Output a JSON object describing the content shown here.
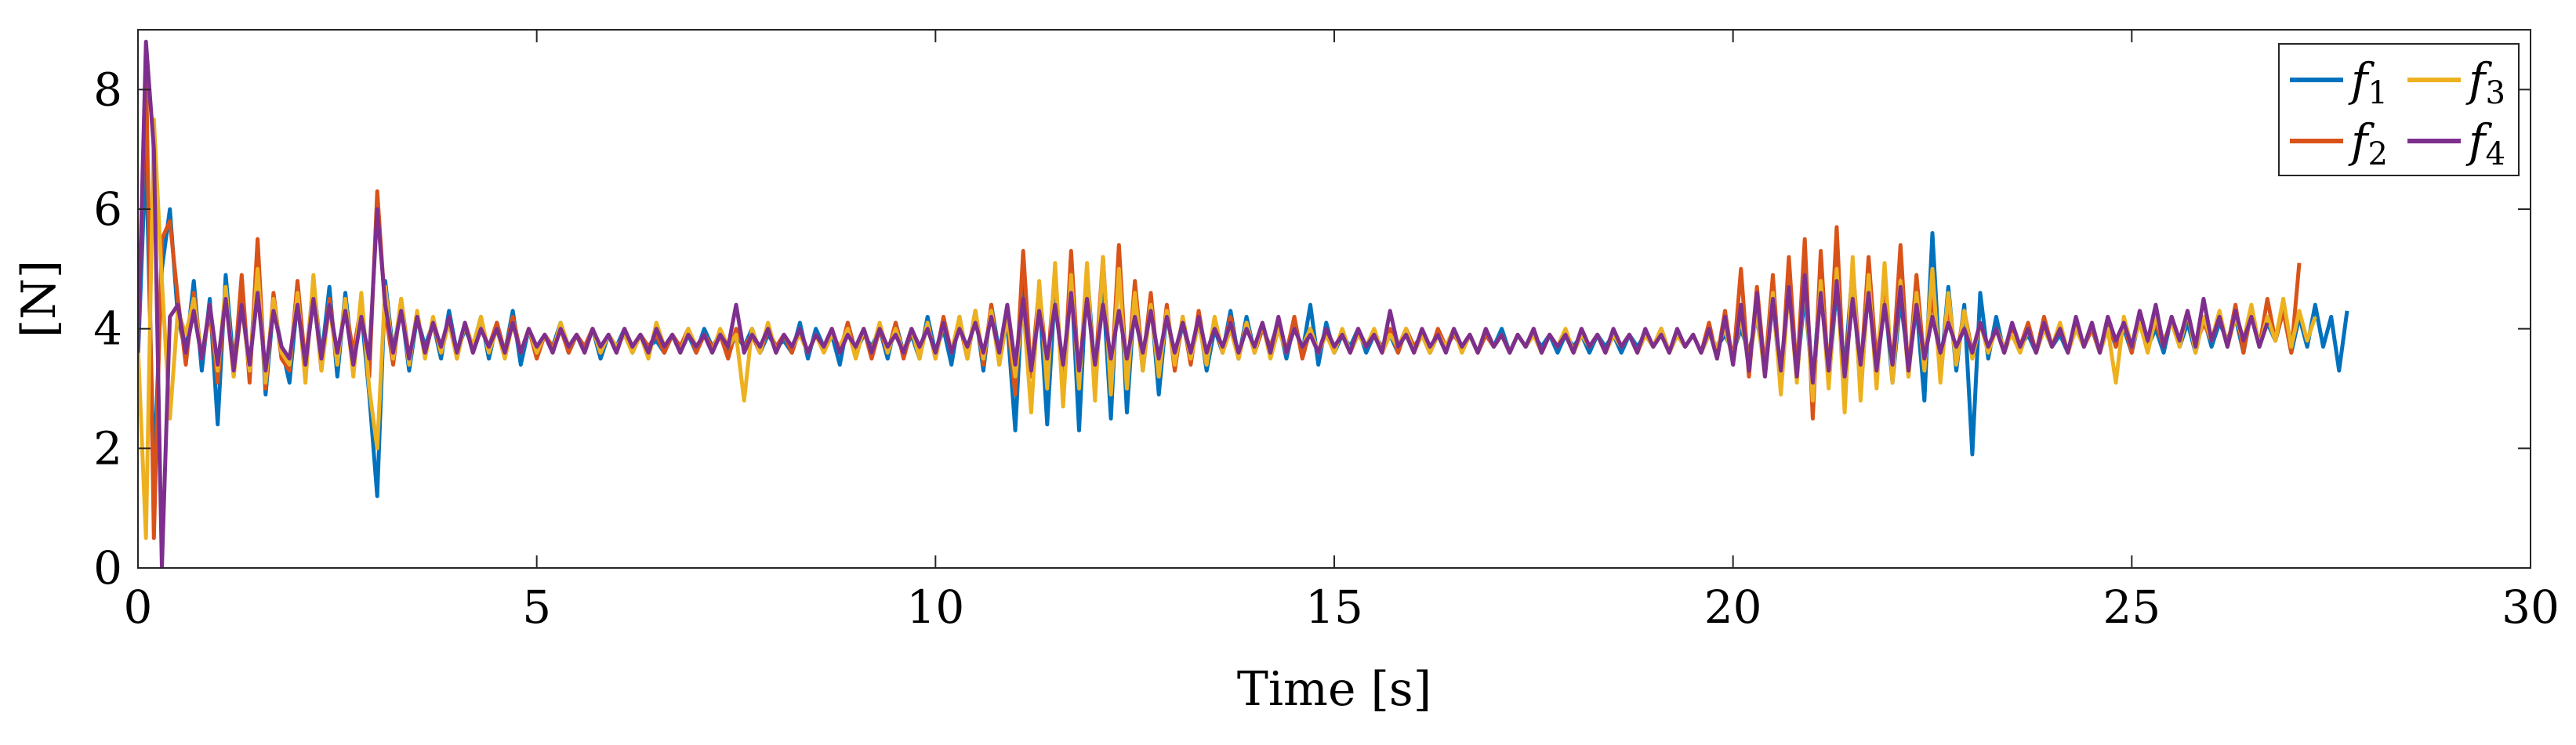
{
  "chart_data": {
    "type": "line",
    "title": "",
    "xlabel": "Time [s]",
    "ylabel": "[N]",
    "xlim": [
      0,
      30
    ],
    "ylim": [
      0,
      9
    ],
    "xticks": [
      0,
      5,
      10,
      15,
      20,
      25,
      30
    ],
    "yticks": [
      0,
      2,
      4,
      6,
      8
    ],
    "x_tick_labels": [
      "0",
      "5",
      "10",
      "15",
      "20",
      "25",
      "30"
    ],
    "y_tick_labels": [
      "0",
      "2",
      "4",
      "6",
      "8"
    ],
    "grid": false,
    "legend_position": "top-right",
    "sample_step_s": 0.1,
    "series": [
      {
        "name": "f1",
        "label_base": "f",
        "label_sub": "1",
        "color": "#0072BD",
        "values": [
          3.5,
          7.0,
          1.5,
          5.0,
          6.0,
          4.2,
          3.6,
          4.8,
          3.3,
          4.5,
          2.4,
          4.9,
          3.4,
          4.6,
          3.2,
          5.3,
          2.9,
          4.4,
          3.7,
          3.1,
          4.5,
          3.3,
          4.8,
          3.5,
          4.7,
          3.2,
          4.6,
          3.4,
          4.3,
          2.9,
          1.2,
          4.8,
          3.6,
          4.4,
          3.3,
          4.2,
          3.7,
          4.1,
          3.5,
          4.3,
          3.6,
          4.0,
          3.7,
          4.2,
          3.5,
          4.1,
          3.6,
          4.3,
          3.4,
          4.0,
          3.6,
          3.9,
          3.7,
          4.1,
          3.6,
          3.9,
          3.7,
          4.0,
          3.5,
          3.9,
          3.7,
          4.0,
          3.6,
          3.9,
          3.7,
          3.8,
          3.6,
          3.9,
          3.7,
          3.9,
          3.6,
          4.0,
          3.7,
          3.9,
          3.6,
          3.9,
          3.7,
          4.0,
          3.6,
          3.9,
          3.7,
          3.8,
          3.6,
          4.1,
          3.5,
          4.0,
          3.7,
          3.9,
          3.4,
          4.1,
          3.6,
          3.9,
          3.7,
          4.0,
          3.5,
          4.1,
          3.6,
          3.9,
          3.5,
          4.2,
          3.6,
          4.0,
          3.4,
          4.2,
          3.5,
          4.3,
          3.3,
          4.4,
          3.6,
          4.1,
          2.3,
          4.8,
          3.2,
          4.6,
          2.4,
          4.7,
          3.1,
          4.9,
          2.3,
          5.0,
          3.2,
          4.7,
          2.5,
          5.2,
          2.6,
          4.6,
          3.3,
          4.5,
          2.9,
          4.3,
          3.4,
          4.1,
          3.5,
          4.2,
          3.3,
          4.0,
          3.6,
          4.3,
          3.5,
          4.2,
          3.6,
          4.0,
          3.7,
          4.1,
          3.5,
          4.1,
          3.6,
          4.4,
          3.4,
          4.1,
          3.6,
          3.9,
          3.7,
          4.0,
          3.6,
          3.9,
          3.7,
          3.9,
          3.6,
          4.0,
          3.7,
          3.9,
          3.6,
          3.9,
          3.7,
          3.9,
          3.7,
          3.9,
          3.6,
          3.9,
          3.7,
          4.0,
          3.6,
          3.9,
          3.7,
          3.9,
          3.7,
          3.9,
          3.6,
          3.9,
          3.7,
          3.9,
          3.6,
          3.9,
          3.7,
          3.9,
          3.6,
          3.9,
          3.7,
          3.9,
          3.7,
          4.0,
          3.6,
          3.9,
          3.7,
          3.9,
          3.6,
          3.9,
          3.7,
          3.9,
          3.6,
          4.0,
          3.6,
          4.2,
          3.3,
          4.5,
          3.0,
          4.8,
          3.2,
          4.6,
          3.0,
          4.9,
          3.1,
          4.7,
          3.3,
          5.0,
          2.9,
          4.8,
          3.2,
          4.6,
          3.1,
          4.5,
          3.4,
          4.4,
          2.8,
          5.6,
          3.2,
          4.7,
          3.3,
          4.4,
          1.9,
          4.6,
          3.5,
          4.2,
          3.6,
          4.0,
          3.7,
          3.9,
          3.6,
          4.0,
          3.7,
          3.9,
          3.6,
          4.1,
          3.7,
          4.0,
          3.6,
          4.1,
          3.7,
          4.0,
          3.6,
          4.2,
          3.7,
          4.0,
          3.6,
          4.2,
          3.7,
          4.1,
          3.6,
          4.2,
          3.7,
          4.1,
          3.8,
          4.2,
          3.6,
          4.3,
          3.7,
          4.1,
          3.8,
          4.3,
          3.6,
          4.2,
          3.7,
          4.4,
          3.7,
          4.2,
          3.3,
          4.3
        ]
      },
      {
        "name": "f2",
        "label_base": "f",
        "label_sub": "2",
        "color": "#D95319",
        "values": [
          3.6,
          8.5,
          0.5,
          5.5,
          5.8,
          4.5,
          3.4,
          4.6,
          3.5,
          4.3,
          3.1,
          4.6,
          3.2,
          4.9,
          3.1,
          5.5,
          3.0,
          4.6,
          3.5,
          3.3,
          4.8,
          3.4,
          4.7,
          3.3,
          4.5,
          3.5,
          4.4,
          3.6,
          4.4,
          3.2,
          6.3,
          4.3,
          3.4,
          4.5,
          3.5,
          4.2,
          3.6,
          4.1,
          3.6,
          4.2,
          3.5,
          4.1,
          3.6,
          4.0,
          3.7,
          4.1,
          3.6,
          4.2,
          3.6,
          4.0,
          3.5,
          3.9,
          3.7,
          4.0,
          3.6,
          3.9,
          3.7,
          4.0,
          3.6,
          3.9,
          3.6,
          4.0,
          3.7,
          3.9,
          3.7,
          3.9,
          3.6,
          3.9,
          3.7,
          4.0,
          3.6,
          3.9,
          3.7,
          3.9,
          3.5,
          4.0,
          3.7,
          3.9,
          3.6,
          4.0,
          3.7,
          3.9,
          3.6,
          4.0,
          3.6,
          3.9,
          3.7,
          4.0,
          3.6,
          4.1,
          3.6,
          4.0,
          3.5,
          4.0,
          3.6,
          4.1,
          3.5,
          4.0,
          3.6,
          4.1,
          3.5,
          4.2,
          3.6,
          4.1,
          3.5,
          4.3,
          3.4,
          4.4,
          3.4,
          4.2,
          2.9,
          5.3,
          3.2,
          4.7,
          3.3,
          5.0,
          2.8,
          5.3,
          3.1,
          4.8,
          3.2,
          5.2,
          3.0,
          5.4,
          3.1,
          4.8,
          3.4,
          4.6,
          3.2,
          4.4,
          3.3,
          4.2,
          3.4,
          4.3,
          3.5,
          4.1,
          3.6,
          4.2,
          3.5,
          4.1,
          3.6,
          4.0,
          3.7,
          4.1,
          3.6,
          4.2,
          3.5,
          4.0,
          3.6,
          4.0,
          3.7,
          3.9,
          3.6,
          4.0,
          3.7,
          3.9,
          3.6,
          4.0,
          3.6,
          4.0,
          3.7,
          3.9,
          3.6,
          4.0,
          3.7,
          3.9,
          3.7,
          3.9,
          3.6,
          3.9,
          3.7,
          3.9,
          3.6,
          3.9,
          3.7,
          4.0,
          3.6,
          3.9,
          3.7,
          3.9,
          3.6,
          4.0,
          3.7,
          3.9,
          3.6,
          3.9,
          3.7,
          3.9,
          3.6,
          3.9,
          3.7,
          4.0,
          3.6,
          3.9,
          3.7,
          3.9,
          3.6,
          4.1,
          3.5,
          4.3,
          3.4,
          5.0,
          3.2,
          4.7,
          3.3,
          4.9,
          3.0,
          5.2,
          3.2,
          5.5,
          2.5,
          5.3,
          3.1,
          5.7,
          2.9,
          5.1,
          3.2,
          5.2,
          3.4,
          4.7,
          3.3,
          5.4,
          3.2,
          4.9,
          3.4,
          4.6,
          3.3,
          4.4,
          3.5,
          4.3,
          3.6,
          4.1,
          3.7,
          4.0,
          3.6,
          4.0,
          3.7,
          4.1,
          3.6,
          4.2,
          3.7,
          4.0,
          3.6,
          4.1,
          3.7,
          4.0,
          3.6,
          4.2,
          3.7,
          4.1,
          3.6,
          4.3,
          3.8,
          4.1,
          3.7,
          4.2,
          3.8,
          4.3,
          3.7,
          4.1,
          3.8,
          4.2,
          3.7,
          4.4,
          3.6,
          4.3,
          3.7,
          4.5,
          3.8,
          4.3,
          3.6,
          5.1
        ]
      },
      {
        "name": "f3",
        "label_base": "f",
        "label_sub": "3",
        "color": "#EDB120",
        "values": [
          3.7,
          0.5,
          7.5,
          4.8,
          2.5,
          4.3,
          3.9,
          4.5,
          3.5,
          4.4,
          3.3,
          4.7,
          3.2,
          4.4,
          3.3,
          5.0,
          3.1,
          4.5,
          3.6,
          3.4,
          4.6,
          3.1,
          4.9,
          3.3,
          4.4,
          3.4,
          4.5,
          3.2,
          4.6,
          3.0,
          2.0,
          4.7,
          3.5,
          4.5,
          3.4,
          4.3,
          3.5,
          4.2,
          3.6,
          4.1,
          3.5,
          4.1,
          3.7,
          4.2,
          3.6,
          4.0,
          3.5,
          4.1,
          3.6,
          4.0,
          3.6,
          3.9,
          3.6,
          4.1,
          3.7,
          3.9,
          3.6,
          4.0,
          3.6,
          3.9,
          3.7,
          3.9,
          3.6,
          3.9,
          3.5,
          4.1,
          3.7,
          3.9,
          3.6,
          4.0,
          3.7,
          3.9,
          3.6,
          4.0,
          3.7,
          3.9,
          2.8,
          4.0,
          3.6,
          4.1,
          3.6,
          3.9,
          3.7,
          3.9,
          3.6,
          3.9,
          3.6,
          3.9,
          3.7,
          4.0,
          3.5,
          4.0,
          3.6,
          4.1,
          3.6,
          4.0,
          3.6,
          4.0,
          3.5,
          4.1,
          3.5,
          4.1,
          3.6,
          4.2,
          3.5,
          4.3,
          3.5,
          4.3,
          3.4,
          4.2,
          3.2,
          4.4,
          2.6,
          4.8,
          3.0,
          5.1,
          2.7,
          4.9,
          3.0,
          5.1,
          2.8,
          5.2,
          2.9,
          5.0,
          3.0,
          4.6,
          3.3,
          4.4,
          3.2,
          4.3,
          3.4,
          4.2,
          3.5,
          4.1,
          3.4,
          4.2,
          3.6,
          4.0,
          3.5,
          4.1,
          3.6,
          4.1,
          3.5,
          4.0,
          3.6,
          4.0,
          3.7,
          4.0,
          3.6,
          3.9,
          3.6,
          4.0,
          3.6,
          3.9,
          3.7,
          4.0,
          3.6,
          3.9,
          3.7,
          4.0,
          3.6,
          3.9,
          3.6,
          3.9,
          3.7,
          4.0,
          3.6,
          3.9,
          3.6,
          4.0,
          3.7,
          3.9,
          3.6,
          3.9,
          3.7,
          3.9,
          3.6,
          3.9,
          3.7,
          4.0,
          3.6,
          3.9,
          3.7,
          3.9,
          3.6,
          3.9,
          3.7,
          3.9,
          3.6,
          3.9,
          3.7,
          4.0,
          3.6,
          3.9,
          3.7,
          3.9,
          3.6,
          3.9,
          3.7,
          4.0,
          3.5,
          4.2,
          3.4,
          4.3,
          3.2,
          4.6,
          2.9,
          4.7,
          3.1,
          4.9,
          2.8,
          4.8,
          3.0,
          5.0,
          2.6,
          5.2,
          2.8,
          4.9,
          3.0,
          5.1,
          3.1,
          4.8,
          3.2,
          4.6,
          3.3,
          5.0,
          3.1,
          4.6,
          3.4,
          4.3,
          3.5,
          4.1,
          3.6,
          4.0,
          3.7,
          3.9,
          3.6,
          4.0,
          3.6,
          4.0,
          3.7,
          4.1,
          3.6,
          4.0,
          3.7,
          4.1,
          3.6,
          4.0,
          3.1,
          4.2,
          3.7,
          4.1,
          3.6,
          4.2,
          3.8,
          4.1,
          3.7,
          4.3,
          3.6,
          4.2,
          3.8,
          4.3,
          3.7,
          4.2,
          3.8,
          4.4,
          3.7,
          4.2,
          3.8,
          4.5,
          3.7,
          4.3,
          3.8,
          4.2
        ]
      },
      {
        "name": "f4",
        "label_base": "f",
        "label_sub": "4",
        "color": "#7E2F8E",
        "values": [
          3.6,
          8.8,
          7.0,
          0.0,
          4.2,
          4.4,
          3.6,
          4.3,
          3.5,
          4.4,
          3.4,
          4.5,
          3.3,
          4.4,
          3.4,
          4.6,
          3.3,
          4.3,
          3.7,
          3.5,
          4.4,
          3.4,
          4.5,
          3.5,
          4.4,
          3.6,
          4.3,
          3.4,
          4.2,
          3.5,
          6.0,
          4.4,
          3.6,
          4.3,
          3.5,
          4.2,
          3.6,
          4.1,
          3.7,
          4.2,
          3.6,
          4.1,
          3.6,
          4.0,
          3.7,
          4.0,
          3.6,
          4.1,
          3.6,
          4.0,
          3.7,
          3.9,
          3.6,
          4.0,
          3.7,
          3.9,
          3.6,
          4.0,
          3.7,
          3.9,
          3.6,
          4.0,
          3.7,
          3.9,
          3.6,
          4.0,
          3.7,
          3.9,
          3.6,
          3.9,
          3.7,
          3.9,
          3.6,
          3.9,
          3.7,
          4.4,
          3.6,
          3.9,
          3.7,
          4.0,
          3.6,
          3.9,
          3.7,
          4.0,
          3.6,
          3.9,
          3.7,
          4.0,
          3.6,
          3.9,
          3.7,
          4.0,
          3.6,
          4.0,
          3.7,
          3.9,
          3.6,
          4.0,
          3.7,
          4.0,
          3.6,
          4.1,
          3.6,
          4.0,
          3.7,
          4.1,
          3.6,
          4.2,
          3.6,
          4.4,
          3.4,
          4.5,
          3.3,
          4.3,
          3.5,
          4.4,
          3.4,
          4.6,
          3.3,
          4.5,
          3.4,
          4.4,
          3.5,
          4.3,
          3.5,
          4.2,
          3.6,
          4.3,
          3.5,
          4.2,
          3.6,
          4.1,
          3.6,
          4.2,
          3.6,
          4.0,
          3.7,
          4.1,
          3.6,
          4.0,
          3.7,
          4.1,
          3.6,
          4.2,
          3.6,
          4.0,
          3.7,
          3.9,
          3.6,
          4.0,
          3.7,
          3.9,
          3.6,
          4.0,
          3.7,
          3.9,
          3.6,
          4.3,
          3.7,
          3.9,
          3.6,
          4.0,
          3.7,
          3.9,
          3.6,
          4.0,
          3.7,
          3.9,
          3.6,
          4.0,
          3.7,
          3.9,
          3.6,
          3.9,
          3.7,
          4.0,
          3.6,
          3.9,
          3.7,
          3.9,
          3.6,
          4.0,
          3.7,
          3.9,
          3.6,
          4.0,
          3.7,
          3.9,
          3.6,
          4.0,
          3.7,
          3.9,
          3.6,
          4.0,
          3.7,
          3.9,
          3.6,
          4.0,
          3.5,
          4.2,
          3.4,
          4.4,
          3.3,
          4.6,
          3.2,
          4.5,
          3.3,
          4.7,
          3.2,
          4.9,
          3.1,
          4.6,
          3.3,
          4.8,
          3.2,
          4.5,
          3.4,
          4.6,
          3.3,
          4.4,
          3.4,
          4.7,
          3.3,
          4.4,
          3.5,
          4.2,
          3.6,
          4.1,
          3.7,
          4.0,
          3.6,
          4.1,
          3.7,
          4.0,
          3.6,
          4.1,
          3.7,
          4.0,
          3.6,
          4.1,
          3.7,
          4.0,
          3.6,
          4.2,
          3.7,
          4.1,
          3.6,
          4.2,
          3.8,
          4.1,
          3.7,
          4.3,
          3.8,
          4.4,
          3.7,
          4.2,
          3.8,
          4.3,
          3.7,
          4.5,
          3.8,
          4.2,
          3.7,
          4.3,
          3.8,
          4.2,
          3.7,
          4.1
        ]
      }
    ]
  }
}
